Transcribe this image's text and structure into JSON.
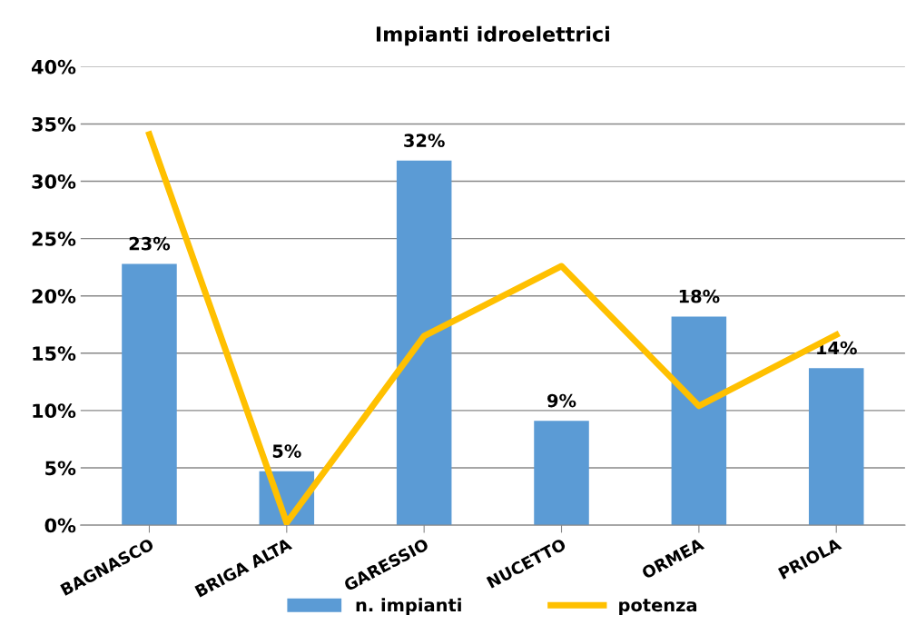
{
  "chart_data": {
    "type": "bar",
    "title": "Impianti idroelettrici",
    "categories": [
      "BAGNASCO",
      "BRIGA ALTA",
      "GARESSIO",
      "NUCETTO",
      "ORMEA",
      "PRIOLA"
    ],
    "series": [
      {
        "name": "n. impianti",
        "color": "#5b9bd5",
        "values": [
          22.8,
          4.7,
          31.8,
          9.1,
          18.2,
          13.7
        ],
        "value_labels": [
          "23%",
          "5%",
          "32%",
          "9%",
          "18%",
          "14%"
        ]
      },
      {
        "name": "potenza",
        "type": "line",
        "color": "#ffc000",
        "values": [
          34.1,
          0.2,
          16.5,
          22.6,
          10.4,
          16.6
        ]
      }
    ],
    "ylim": [
      0,
      40
    ],
    "yticks": [
      {
        "value": 0,
        "label": "0%"
      },
      {
        "value": 5,
        "label": "5%"
      },
      {
        "value": 10,
        "label": "10%"
      },
      {
        "value": 15,
        "label": "15%"
      },
      {
        "value": 20,
        "label": "20%"
      },
      {
        "value": 25,
        "label": "25%"
      },
      {
        "value": 30,
        "label": "30%"
      },
      {
        "value": 35,
        "label": "35%"
      },
      {
        "value": 40,
        "label": "40%"
      }
    ],
    "grid": "y",
    "legend": "bottom",
    "marker": "none",
    "line_style": "solid"
  }
}
